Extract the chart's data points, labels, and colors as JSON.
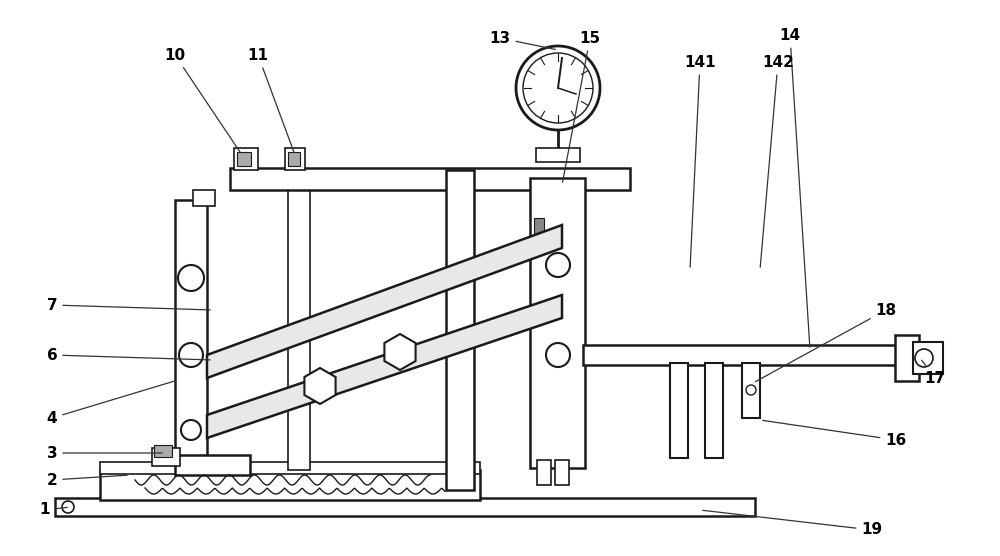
{
  "bg_color": "#ffffff",
  "lc": "#1a1a1a",
  "lw_main": 1.8,
  "lw_thin": 1.2,
  "figsize": [
    10.0,
    5.56
  ],
  "dpi": 100,
  "annot_lw": 0.9,
  "annot_fs": 11
}
